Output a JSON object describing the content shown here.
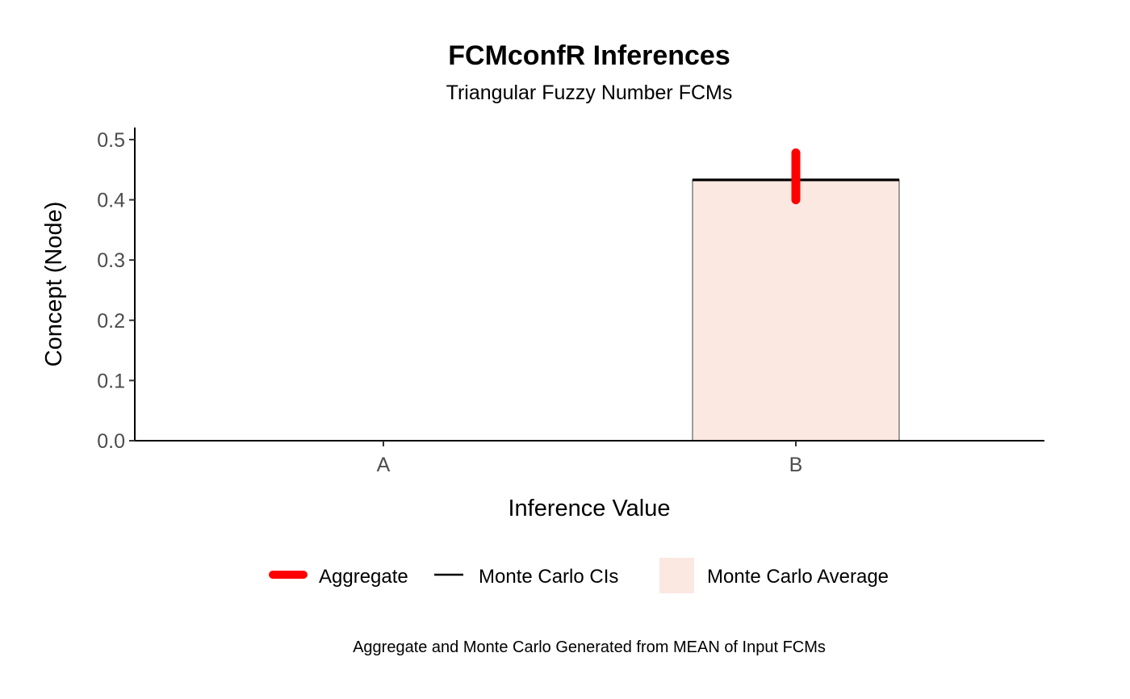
{
  "chart_data": {
    "type": "bar",
    "title": "FCMconfR Inferences",
    "subtitle": "Triangular Fuzzy Number FCMs",
    "xlabel": "Inference Value",
    "ylabel": "Concept (Node)",
    "caption": "Aggregate and Monte Carlo Generated from MEAN of Input FCMs",
    "categories": [
      "A",
      "B"
    ],
    "ylim": [
      0,
      0.52
    ],
    "yticks": [
      0.0,
      0.1,
      0.2,
      0.3,
      0.4,
      0.5
    ],
    "ytick_labels": [
      "0.0",
      "0.1",
      "0.2",
      "0.3",
      "0.4",
      "0.5"
    ],
    "series": [
      {
        "name": "Monte Carlo Average",
        "type": "bar",
        "values": [
          0.0,
          0.433
        ],
        "color": "#fbe8e1"
      },
      {
        "name": "Monte Carlo CIs",
        "type": "errorbar",
        "lower": [
          0.0,
          0.433
        ],
        "upper": [
          0.0,
          0.433
        ],
        "color": "#000000"
      },
      {
        "name": "Aggregate",
        "type": "range",
        "lower": [
          null,
          0.4
        ],
        "upper": [
          null,
          0.478
        ],
        "color": "#ff0000"
      }
    ],
    "legend": {
      "position": "bottom",
      "entries": [
        {
          "label": "Aggregate",
          "key": "red-thick-line"
        },
        {
          "label": "Monte Carlo CIs",
          "key": "black-line"
        },
        {
          "label": "Monte Carlo Average",
          "key": "fill-swatch"
        }
      ]
    },
    "grid": false
  }
}
